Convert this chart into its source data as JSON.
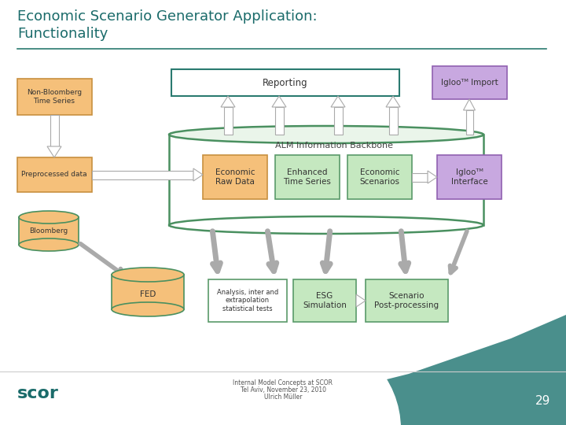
{
  "title_line1": "Economic Scenario Generator Application:",
  "title_line2": "Functionality",
  "title_color": "#1a6b6a",
  "bg_color": "#ffffff",
  "footer_text1": "Internal Model Concepts at SCOR",
  "footer_text2": "Tel Aviv, November 23, 2010",
  "footer_text3": "Ulrich Müller",
  "page_number": "29",
  "orange_color": "#f5c07a",
  "orange_border": "#c89040",
  "green_color": "#c5e8c0",
  "green_border": "#5a9a6a",
  "purple_color": "#c8a8e0",
  "purple_border": "#9060b0",
  "teal_color": "#4a8f8c",
  "arrow_fill": "#ffffff",
  "arrow_edge": "#aaaaaa",
  "cylinder_fill": "#f5c07a",
  "cylinder_border": "#4a9060",
  "reporting_border": "#2a7a70",
  "scor_color": "#1a6b6a",
  "underline_color": "#2a7a70"
}
